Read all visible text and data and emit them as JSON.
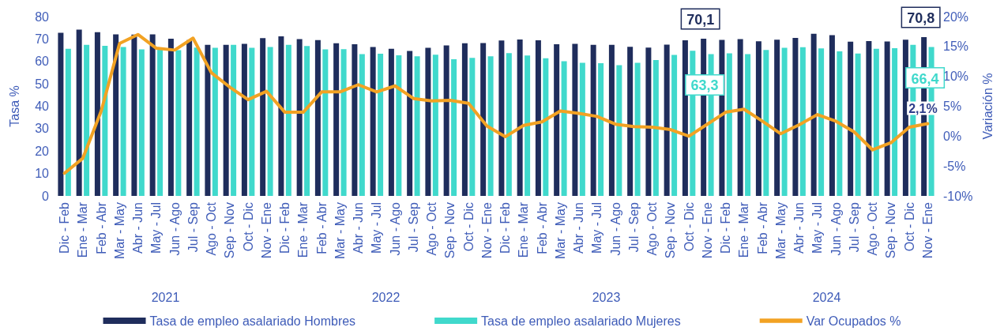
{
  "chart_data": {
    "type": "bar",
    "ylabel": "Tasa %",
    "y2label": "Variación %",
    "categories": [
      "Dic - Feb",
      "Ene - Mar",
      "Feb - Abr",
      "Mar - May",
      "Abr - Jun",
      "May - Jul",
      "Jun - Ago",
      "Jul - Sep",
      "Ago - Oct",
      "Sep - Nov",
      "Oct - Dic",
      "Nov - Ene",
      "Dic - Feb",
      "Ene - Mar",
      "Feb - Abr",
      "Mar - May",
      "Abr - Jun",
      "May - Jul",
      "Jun - Ago",
      "Jul - Sep",
      "Ago - Oct",
      "Sep - Nov",
      "Oct - Dic",
      "Nov - Ene",
      "Dic - Feb",
      "Ene - Mar",
      "Feb - Abr",
      "Mar - May",
      "Abr - Jun",
      "May - Jul",
      "Jun - Ago",
      "Jul - Sep",
      "Ago - Oct",
      "Sep - Nov",
      "Oct - Dic",
      "Nov - Ene",
      "Dic - Feb",
      "Ene - Mar",
      "Feb - Abr",
      "Mar - May",
      "Abr - Jun",
      "May - Jul",
      "Jun - Ago",
      "Jul - Sep",
      "Ago - Oct",
      "Sep - Nov",
      "Oct - Dic",
      "Nov - Ene"
    ],
    "annotations": [
      "2021",
      "2022",
      "2023",
      "2024"
    ],
    "series": [
      {
        "name": "Tasa de empleo asalariado Hombres",
        "type": "bar",
        "color": "#1f2d5c",
        "values": [
          72.8,
          74.2,
          73.0,
          72.1,
          72.0,
          72.1,
          70.1,
          69.5,
          67.4,
          67.4,
          67.8,
          70.4,
          71.2,
          70.0,
          69.5,
          68.1,
          67.7,
          66.4,
          65.6,
          64.7,
          66.1,
          67.1,
          68.1,
          68.2,
          69.3,
          69.8,
          69.4,
          67.7,
          67.8,
          67.4,
          67.4,
          66.5,
          66.2,
          67.5,
          69.4,
          70.1,
          69.6,
          70.0,
          69.0,
          69.7,
          70.5,
          72.3,
          71.7,
          68.8,
          69.1,
          68.9,
          69.7,
          70.8
        ],
        "value_labels": [
          null,
          null,
          null,
          null,
          null,
          null,
          null,
          null,
          null,
          null,
          null,
          null,
          null,
          null,
          null,
          null,
          null,
          null,
          null,
          null,
          null,
          null,
          null,
          null,
          null,
          null,
          null,
          null,
          null,
          null,
          null,
          null,
          null,
          null,
          null,
          "70,1",
          null,
          null,
          null,
          null,
          null,
          null,
          null,
          null,
          null,
          null,
          null,
          "70,8"
        ]
      },
      {
        "name": "Tasa de empleo asalariado Mujeres",
        "type": "bar",
        "color": "#40d9cc",
        "values": [
          65.6,
          67.4,
          67.0,
          66.4,
          65.4,
          65.5,
          65.0,
          66.2,
          66.1,
          67.4,
          66.1,
          66.4,
          67.4,
          66.9,
          65.4,
          65.5,
          63.3,
          63.4,
          62.7,
          62.3,
          63.0,
          61.0,
          61.6,
          62.3,
          63.7,
          62.6,
          61.4,
          60.1,
          59.4,
          59.2,
          58.3,
          59.4,
          60.6,
          62.9,
          64.8,
          63.3,
          63.6,
          63.3,
          65.1,
          66.1,
          66.3,
          65.8,
          64.5,
          63.5,
          65.6,
          65.9,
          67.4,
          66.4
        ],
        "value_labels": [
          null,
          null,
          null,
          null,
          null,
          null,
          null,
          null,
          null,
          null,
          null,
          null,
          null,
          null,
          null,
          null,
          null,
          null,
          null,
          null,
          null,
          null,
          null,
          null,
          null,
          null,
          null,
          null,
          null,
          null,
          null,
          null,
          null,
          null,
          null,
          "63,3",
          null,
          null,
          null,
          null,
          null,
          null,
          null,
          null,
          null,
          null,
          null,
          "66,4"
        ]
      },
      {
        "name": "Var Ocupados %",
        "type": "line",
        "axis": "y2",
        "color": "#f2a223",
        "values": [
          -6.2,
          -3.7,
          4.2,
          15.5,
          17.0,
          14.7,
          14.4,
          16.4,
          10.6,
          8.2,
          6.1,
          7.5,
          4.0,
          4.0,
          7.4,
          7.4,
          8.6,
          7.4,
          8.4,
          6.3,
          5.9,
          6.0,
          5.5,
          1.7,
          -0.1,
          1.8,
          2.4,
          4.2,
          3.8,
          3.3,
          2.0,
          1.6,
          1.5,
          1.1,
          0.0,
          2.0,
          4.0,
          4.5,
          2.5,
          0.4,
          1.9,
          3.6,
          2.5,
          0.7,
          -2.3,
          -1.1,
          1.5,
          2.1
        ],
        "value_labels": [
          null,
          null,
          null,
          null,
          null,
          null,
          null,
          null,
          null,
          null,
          null,
          null,
          null,
          null,
          null,
          null,
          null,
          null,
          null,
          null,
          null,
          null,
          null,
          null,
          null,
          null,
          null,
          null,
          null,
          null,
          null,
          null,
          null,
          null,
          null,
          null,
          null,
          null,
          null,
          null,
          null,
          null,
          null,
          null,
          null,
          null,
          null,
          "2,1%"
        ]
      }
    ],
    "ylim": [
      0,
      80
    ],
    "yticks": [
      0,
      10,
      20,
      30,
      40,
      50,
      60,
      70,
      80
    ],
    "y2lim": [
      -10,
      20
    ],
    "y2ticks": [
      {
        "value": -10,
        "label": "-10%"
      },
      {
        "value": -5,
        "label": "-5%"
      },
      {
        "value": 0,
        "label": "0%"
      },
      {
        "value": 5,
        "label": "5%"
      },
      {
        "value": 10,
        "label": "10%"
      },
      {
        "value": 15,
        "label": "15%"
      },
      {
        "value": 20,
        "label": "20%"
      }
    ],
    "grid": false,
    "legend": "bottom",
    "marker": "none",
    "line_style": "solid"
  }
}
